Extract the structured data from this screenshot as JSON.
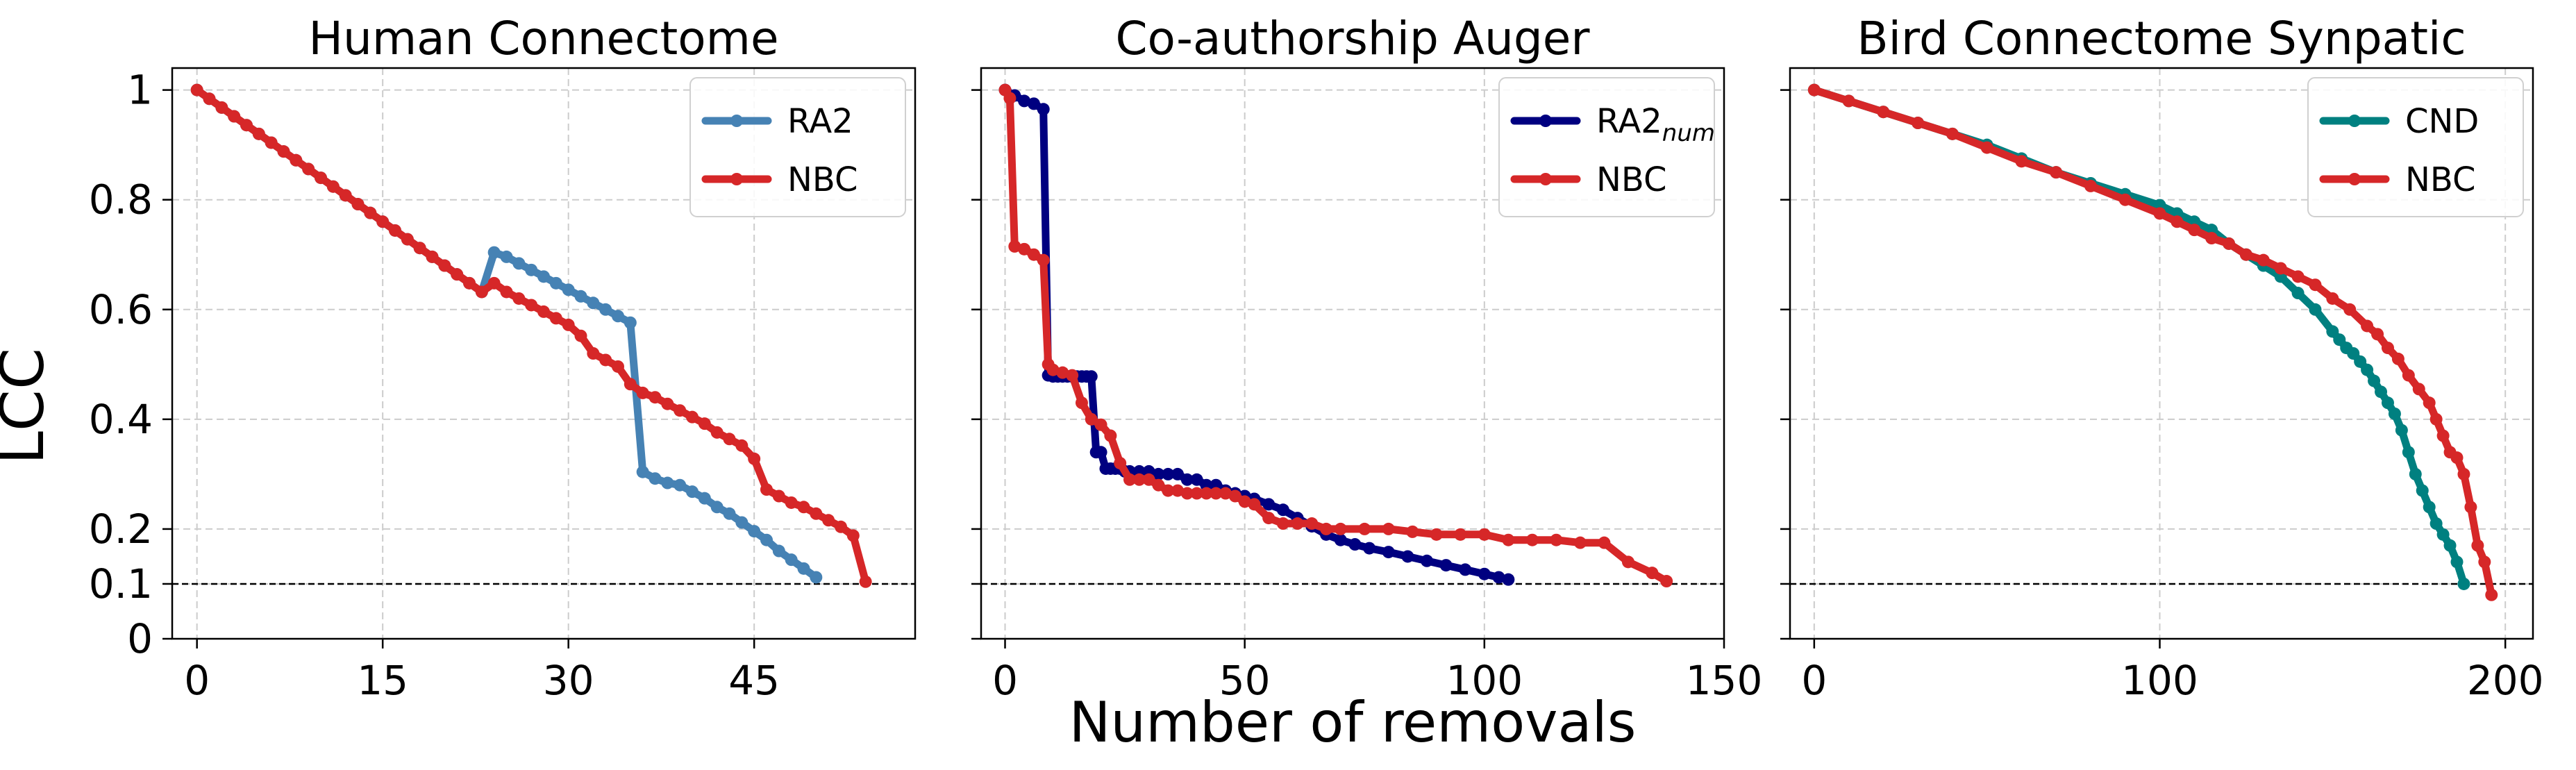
{
  "figure": {
    "ylabel": "LCC",
    "xlabel": "Number of removals"
  },
  "chart_data": [
    {
      "type": "line",
      "title": "Human Connectome",
      "xlabel": "",
      "ylabel": "LCC",
      "xlim": [
        -2,
        58
      ],
      "ylim": [
        0,
        1.04
      ],
      "xticks": [
        0,
        15,
        30,
        45
      ],
      "yticks": [
        0,
        0.1,
        0.2,
        0.4,
        0.6,
        0.8,
        1
      ],
      "ytick_labels": [
        "0",
        "0.1",
        "0.2",
        "0.4",
        "0.6",
        "0.8",
        "1"
      ],
      "grid": true,
      "legend_position": "top-right",
      "threshold": 0.1,
      "series": [
        {
          "name": "RA2",
          "sub": "",
          "color": "#4682b4",
          "x": [
            0,
            1,
            2,
            3,
            4,
            5,
            6,
            7,
            8,
            9,
            10,
            11,
            12,
            13,
            14,
            15,
            16,
            17,
            18,
            19,
            20,
            21,
            22,
            23,
            24,
            25,
            26,
            27,
            28,
            29,
            30,
            31,
            32,
            33,
            34,
            35,
            36,
            37,
            38,
            39,
            40,
            41,
            42,
            43,
            44,
            45,
            46,
            47,
            48,
            49,
            50
          ],
          "y": [
            1.0,
            0.984,
            0.968,
            0.952,
            0.936,
            0.92,
            0.904,
            0.888,
            0.872,
            0.856,
            0.84,
            0.824,
            0.808,
            0.792,
            0.776,
            0.76,
            0.744,
            0.728,
            0.712,
            0.696,
            0.68,
            0.664,
            0.648,
            0.632,
            0.704,
            0.696,
            0.684,
            0.672,
            0.66,
            0.648,
            0.636,
            0.624,
            0.612,
            0.6,
            0.588,
            0.576,
            0.304,
            0.292,
            0.284,
            0.28,
            0.268,
            0.256,
            0.24,
            0.228,
            0.212,
            0.196,
            0.18,
            0.16,
            0.144,
            0.128,
            0.112
          ]
        },
        {
          "name": "NBC",
          "sub": "",
          "color": "#d62728",
          "x": [
            0,
            1,
            2,
            3,
            4,
            5,
            6,
            7,
            8,
            9,
            10,
            11,
            12,
            13,
            14,
            15,
            16,
            17,
            18,
            19,
            20,
            21,
            22,
            23,
            24,
            25,
            26,
            27,
            28,
            29,
            30,
            31,
            32,
            33,
            34,
            35,
            36,
            37,
            38,
            39,
            40,
            41,
            42,
            43,
            44,
            45,
            46,
            47,
            48,
            49,
            50,
            51,
            52,
            53,
            54
          ],
          "y": [
            1.0,
            0.984,
            0.968,
            0.952,
            0.936,
            0.92,
            0.904,
            0.888,
            0.872,
            0.856,
            0.84,
            0.824,
            0.808,
            0.792,
            0.776,
            0.76,
            0.744,
            0.728,
            0.712,
            0.696,
            0.68,
            0.664,
            0.648,
            0.632,
            0.648,
            0.632,
            0.62,
            0.608,
            0.596,
            0.584,
            0.572,
            0.552,
            0.52,
            0.508,
            0.496,
            0.464,
            0.448,
            0.44,
            0.428,
            0.416,
            0.404,
            0.392,
            0.376,
            0.364,
            0.352,
            0.328,
            0.272,
            0.26,
            0.248,
            0.24,
            0.228,
            0.216,
            0.204,
            0.188,
            0.104
          ]
        }
      ]
    },
    {
      "type": "line",
      "title": "Co-authorship Auger",
      "xlabel": "Number of removals",
      "ylabel": "",
      "xlim": [
        -5,
        150
      ],
      "ylim": [
        0,
        1.04
      ],
      "xticks": [
        0,
        50,
        100,
        150
      ],
      "yticks": [
        0,
        0.1,
        0.2,
        0.4,
        0.6,
        0.8,
        1
      ],
      "grid": true,
      "legend_position": "top-right",
      "threshold": 0.1,
      "series": [
        {
          "name": "RA2",
          "sub": "num",
          "color": "#000080",
          "x": [
            0,
            2,
            4,
            6,
            8,
            9,
            10,
            11,
            12,
            13,
            14,
            15,
            16,
            17,
            18,
            19,
            20,
            21,
            22,
            23,
            24,
            25,
            26,
            28,
            30,
            32,
            34,
            36,
            38,
            40,
            42,
            44,
            46,
            48,
            50,
            52,
            55,
            58,
            61,
            64,
            67,
            70,
            73,
            76,
            80,
            84,
            88,
            92,
            96,
            100,
            103,
            105
          ],
          "y": [
            1.0,
            0.99,
            0.98,
            0.975,
            0.965,
            0.48,
            0.478,
            0.478,
            0.478,
            0.478,
            0.478,
            0.478,
            0.478,
            0.478,
            0.478,
            0.34,
            0.34,
            0.31,
            0.31,
            0.31,
            0.31,
            0.305,
            0.305,
            0.305,
            0.305,
            0.3,
            0.3,
            0.3,
            0.29,
            0.29,
            0.28,
            0.28,
            0.27,
            0.265,
            0.26,
            0.255,
            0.245,
            0.235,
            0.22,
            0.205,
            0.19,
            0.18,
            0.172,
            0.165,
            0.158,
            0.15,
            0.142,
            0.134,
            0.126,
            0.118,
            0.112,
            0.108
          ]
        },
        {
          "name": "NBC",
          "sub": "",
          "color": "#d62728",
          "x": [
            0,
            1,
            2,
            4,
            6,
            8,
            9,
            10,
            12,
            14,
            16,
            18,
            20,
            22,
            24,
            26,
            28,
            30,
            32,
            34,
            36,
            38,
            40,
            42,
            44,
            46,
            48,
            50,
            52,
            55,
            58,
            61,
            64,
            67,
            70,
            75,
            80,
            85,
            90,
            95,
            100,
            105,
            110,
            115,
            120,
            125,
            130,
            135,
            138
          ],
          "y": [
            1.0,
            0.985,
            0.715,
            0.71,
            0.7,
            0.69,
            0.5,
            0.49,
            0.485,
            0.48,
            0.43,
            0.4,
            0.39,
            0.37,
            0.32,
            0.29,
            0.29,
            0.29,
            0.28,
            0.27,
            0.27,
            0.265,
            0.265,
            0.265,
            0.265,
            0.265,
            0.26,
            0.25,
            0.245,
            0.22,
            0.21,
            0.21,
            0.21,
            0.2,
            0.2,
            0.2,
            0.2,
            0.195,
            0.19,
            0.19,
            0.19,
            0.18,
            0.18,
            0.18,
            0.175,
            0.175,
            0.14,
            0.12,
            0.105
          ]
        }
      ]
    },
    {
      "type": "line",
      "title": "Bird Connectome Synpatic",
      "xlabel": "",
      "ylabel": "",
      "xlim": [
        -7,
        208
      ],
      "ylim": [
        0,
        1.04
      ],
      "xticks": [
        0,
        100,
        200
      ],
      "yticks": [
        0,
        0.1,
        0.2,
        0.4,
        0.6,
        0.8,
        1
      ],
      "grid": true,
      "legend_position": "top-right",
      "threshold": 0.1,
      "series": [
        {
          "name": "CND",
          "sub": "",
          "color": "#008080",
          "x": [
            0,
            10,
            20,
            30,
            40,
            50,
            60,
            70,
            80,
            90,
            100,
            105,
            110,
            115,
            120,
            125,
            130,
            135,
            140,
            145,
            150,
            152,
            154,
            156,
            158,
            160,
            162,
            164,
            166,
            168,
            170,
            172,
            174,
            176,
            178,
            180,
            182,
            184,
            186,
            188
          ],
          "y": [
            1.0,
            0.98,
            0.96,
            0.94,
            0.92,
            0.9,
            0.875,
            0.85,
            0.83,
            0.81,
            0.79,
            0.775,
            0.76,
            0.745,
            0.72,
            0.7,
            0.68,
            0.66,
            0.63,
            0.6,
            0.56,
            0.545,
            0.53,
            0.52,
            0.505,
            0.49,
            0.47,
            0.45,
            0.43,
            0.41,
            0.38,
            0.34,
            0.3,
            0.27,
            0.24,
            0.21,
            0.19,
            0.17,
            0.14,
            0.1
          ]
        },
        {
          "name": "NBC",
          "sub": "",
          "color": "#d62728",
          "x": [
            0,
            10,
            20,
            30,
            40,
            50,
            60,
            70,
            80,
            90,
            100,
            105,
            110,
            115,
            120,
            125,
            130,
            135,
            140,
            145,
            150,
            155,
            160,
            163,
            166,
            169,
            172,
            175,
            178,
            180,
            182,
            184,
            186,
            188,
            190,
            192,
            194,
            196
          ],
          "y": [
            1.0,
            0.98,
            0.96,
            0.94,
            0.92,
            0.895,
            0.87,
            0.85,
            0.825,
            0.8,
            0.775,
            0.76,
            0.745,
            0.73,
            0.72,
            0.7,
            0.69,
            0.675,
            0.66,
            0.645,
            0.62,
            0.6,
            0.57,
            0.555,
            0.53,
            0.51,
            0.48,
            0.455,
            0.43,
            0.4,
            0.37,
            0.34,
            0.33,
            0.3,
            0.24,
            0.17,
            0.14,
            0.08
          ]
        }
      ]
    }
  ]
}
